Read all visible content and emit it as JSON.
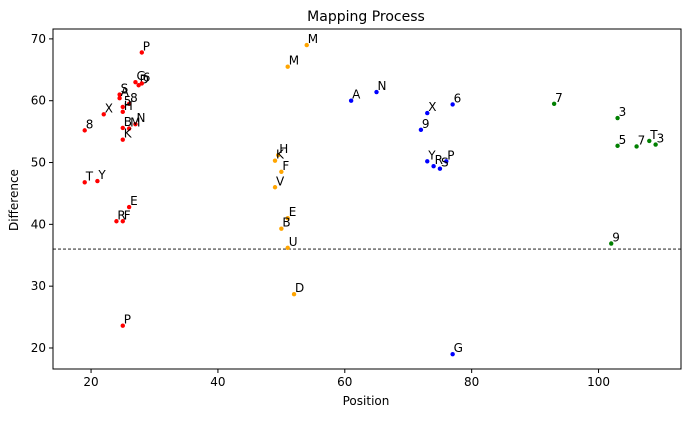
{
  "chart_data": {
    "type": "scatter",
    "title": "Mapping Process",
    "xlabel": "Position",
    "ylabel": "Difference",
    "xlim": [
      14,
      113
    ],
    "ylim": [
      16.6,
      71.6
    ],
    "xticks": [
      20,
      40,
      60,
      80,
      100
    ],
    "yticks": [
      20,
      30,
      40,
      50,
      60,
      70
    ],
    "threshold": 36,
    "grid": false,
    "series": [
      {
        "color": "#ff0000",
        "points": [
          {
            "x": 28,
            "y": 67.8,
            "label": "P"
          },
          {
            "x": 27,
            "y": 63,
            "label": "G"
          },
          {
            "x": 27.5,
            "y": 62.5,
            "label": "D"
          },
          {
            "x": 28,
            "y": 62.8,
            "label": "6"
          },
          {
            "x": 24.5,
            "y": 61,
            "label": "S"
          },
          {
            "x": 24.5,
            "y": 60.4,
            "label": "A"
          },
          {
            "x": 26,
            "y": 59.5,
            "label": "8"
          },
          {
            "x": 25,
            "y": 59,
            "label": "5"
          },
          {
            "x": 25,
            "y": 58.2,
            "label": "H"
          },
          {
            "x": 22,
            "y": 57.8,
            "label": "X"
          },
          {
            "x": 27,
            "y": 56.2,
            "label": "N"
          },
          {
            "x": 25,
            "y": 55.6,
            "label": "B"
          },
          {
            "x": 26,
            "y": 55.5,
            "label": "M"
          },
          {
            "x": 19,
            "y": 55.2,
            "label": "8"
          },
          {
            "x": 25,
            "y": 53.7,
            "label": "K"
          },
          {
            "x": 19,
            "y": 46.8,
            "label": "T"
          },
          {
            "x": 21,
            "y": 47,
            "label": "Y"
          },
          {
            "x": 26,
            "y": 42.8,
            "label": "E"
          },
          {
            "x": 24,
            "y": 40.5,
            "label": "R"
          },
          {
            "x": 25,
            "y": 40.5,
            "label": "F"
          },
          {
            "x": 25,
            "y": 23.6,
            "label": "P"
          }
        ]
      },
      {
        "color": "#ffa500",
        "points": [
          {
            "x": 54,
            "y": 69,
            "label": "M"
          },
          {
            "x": 51,
            "y": 65.5,
            "label": "M"
          },
          {
            "x": 49.5,
            "y": 51.2,
            "label": "H"
          },
          {
            "x": 49,
            "y": 50.3,
            "label": "K"
          },
          {
            "x": 50,
            "y": 48.5,
            "label": "F"
          },
          {
            "x": 49,
            "y": 46,
            "label": "V"
          },
          {
            "x": 51,
            "y": 41,
            "label": "E"
          },
          {
            "x": 50,
            "y": 39.3,
            "label": "B"
          },
          {
            "x": 51,
            "y": 36.2,
            "label": "U"
          },
          {
            "x": 52,
            "y": 28.7,
            "label": "D"
          }
        ]
      },
      {
        "color": "#0000ff",
        "points": [
          {
            "x": 61,
            "y": 60,
            "label": "A"
          },
          {
            "x": 65,
            "y": 61.4,
            "label": "N"
          },
          {
            "x": 77,
            "y": 59.4,
            "label": "6"
          },
          {
            "x": 73,
            "y": 58,
            "label": "X"
          },
          {
            "x": 72,
            "y": 55.3,
            "label": "9"
          },
          {
            "x": 73,
            "y": 50.2,
            "label": "Y"
          },
          {
            "x": 76,
            "y": 50.2,
            "label": "P"
          },
          {
            "x": 74,
            "y": 49.4,
            "label": "R"
          },
          {
            "x": 75,
            "y": 49,
            "label": "S"
          },
          {
            "x": 77,
            "y": 19,
            "label": "G"
          }
        ]
      },
      {
        "color": "#008000",
        "points": [
          {
            "x": 93,
            "y": 59.5,
            "label": "7"
          },
          {
            "x": 103,
            "y": 57.2,
            "label": "3"
          },
          {
            "x": 103,
            "y": 52.7,
            "label": "5"
          },
          {
            "x": 106,
            "y": 52.6,
            "label": "7"
          },
          {
            "x": 108,
            "y": 53.5,
            "label": "T"
          },
          {
            "x": 109,
            "y": 52.9,
            "label": "3"
          },
          {
            "x": 102,
            "y": 36.9,
            "label": "9"
          }
        ]
      }
    ]
  }
}
